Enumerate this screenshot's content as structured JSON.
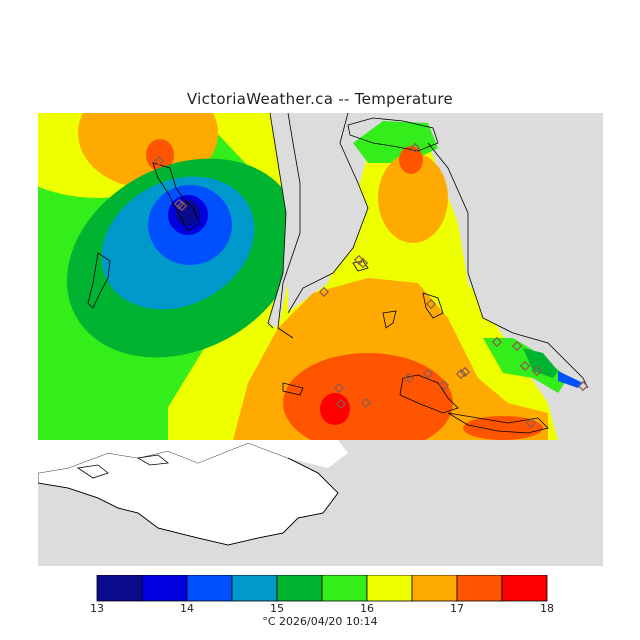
{
  "title": "VictoriaWeather.ca -- Temperature",
  "legend": {
    "ticks": [
      "13",
      "14",
      "15",
      "16",
      "17",
      "18"
    ],
    "colors": [
      "#0a0a8c",
      "#0000e0",
      "#0050ff",
      "#0099cc",
      "#00b432",
      "#33ee1a",
      "#eeff00",
      "#ffaa00",
      "#ff5500",
      "#ff0000"
    ]
  },
  "caption": {
    "unit": "°C",
    "timestamp": "2026/04/20 10:14"
  },
  "colors": {
    "no_data": "#dcdcdc",
    "land_unplotted": "#ffffff",
    "coastline": "#000000",
    "station_marker": "#8c5a50"
  },
  "stations_count_shown": 22
}
